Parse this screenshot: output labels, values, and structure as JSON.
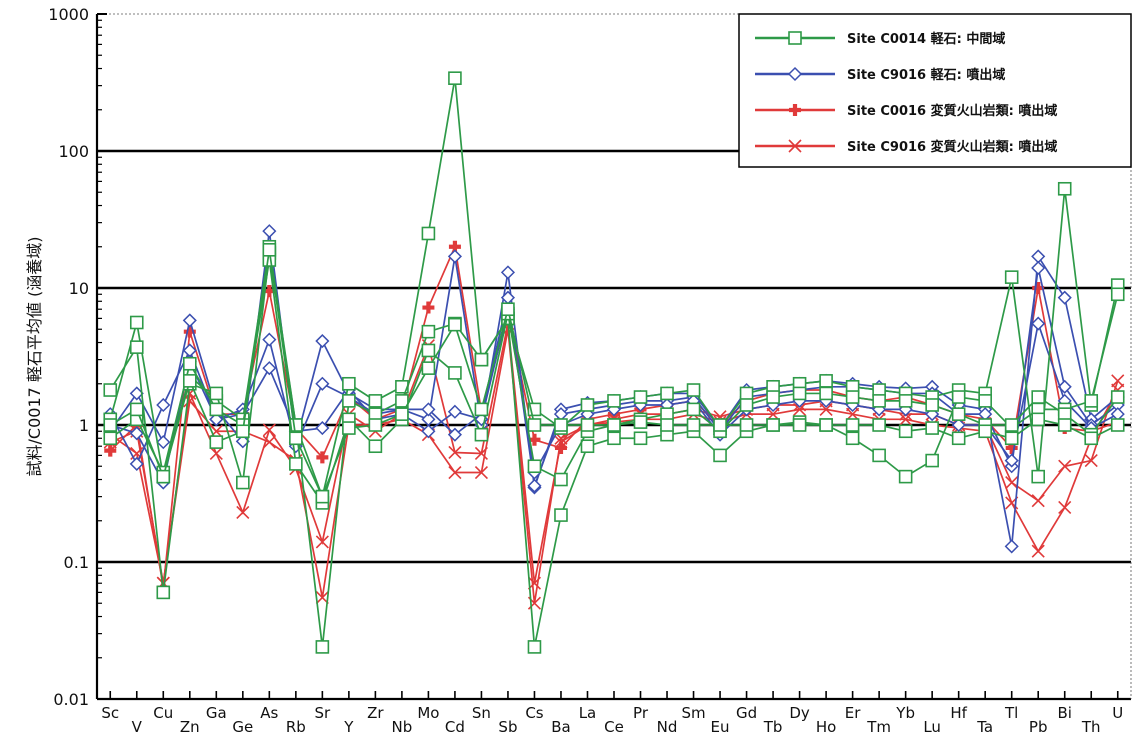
{
  "chart_data": {
    "type": "line",
    "ylabel": "試料/C0017 軽石平均値 (涵養域)",
    "xlabel": "",
    "yscale": "log",
    "ylim": [
      0.01,
      1000
    ],
    "yticks": [
      "0.01",
      "0.1",
      "1",
      "10",
      "100",
      "1000"
    ],
    "categories": [
      "Sc",
      "V",
      "Cu",
      "Zn",
      "Ga",
      "Ge",
      "As",
      "Rb",
      "Sr",
      "Y",
      "Zr",
      "Nb",
      "Mo",
      "Cd",
      "Sn",
      "Sb",
      "Cs",
      "Ba",
      "La",
      "Ce",
      "Pr",
      "Nd",
      "Sm",
      "Eu",
      "Gd",
      "Tb",
      "Dy",
      "Ho",
      "Er",
      "Tm",
      "Yb",
      "Lu",
      "Hf",
      "Ta",
      "Tl",
      "Pb",
      "Bi",
      "Th",
      "U"
    ],
    "grid_major_y": [
      0.1,
      1,
      10,
      100
    ],
    "legend_position": "top-right",
    "legend": [
      {
        "name": "Site C0014 軽石: 中間域",
        "color": "#2e9a48",
        "marker": "square"
      },
      {
        "name": "Site C9016 軽石: 噴出域",
        "color": "#3b4fb0",
        "marker": "diamond"
      },
      {
        "name": "Site C0016 変質火山岩類: 噴出域",
        "color": "#e03a3a",
        "marker": "plus"
      },
      {
        "name": "Site C9016 変質火山岩類: 噴出域",
        "color": "#e03a3a",
        "marker": "x"
      }
    ],
    "series": [
      {
        "color": "#2e9a48",
        "marker": "square",
        "values": [
          1.1,
          5.6,
          0.42,
          2.3,
          1.5,
          1.1,
          20,
          1.0,
          0.3,
          2.0,
          1.5,
          1.9,
          25,
          340,
          3.0,
          6.0,
          1.3,
          0.95,
          1.4,
          1.5,
          1.6,
          1.7,
          1.8,
          0.95,
          1.7,
          1.9,
          2.0,
          2.1,
          1.9,
          1.8,
          1.7,
          1.6,
          1.8,
          1.7,
          12,
          0.42,
          53,
          1.4,
          10.5
        ]
      },
      {
        "color": "#2e9a48",
        "marker": "square",
        "values": [
          1.8,
          3.7,
          0.06,
          2.0,
          1.7,
          0.38,
          18,
          1.0,
          0.024,
          1.5,
          1.2,
          1.5,
          4.8,
          5.5,
          3.0,
          6.0,
          0.024,
          0.22,
          0.7,
          0.8,
          0.8,
          0.85,
          0.9,
          0.6,
          0.9,
          1.0,
          1.05,
          1.0,
          0.8,
          0.6,
          0.42,
          0.55,
          1.6,
          1.5,
          0.95,
          1.3,
          1.3,
          1.5,
          9.0
        ]
      },
      {
        "color": "#2e9a48",
        "marker": "square",
        "values": [
          0.8,
          1.1,
          0.45,
          2.8,
          1.3,
          1.0,
          16,
          0.52,
          0.27,
          1.1,
          0.7,
          1.1,
          3.5,
          2.4,
          0.85,
          6.5,
          0.5,
          0.4,
          0.9,
          1.0,
          1.1,
          1.2,
          1.3,
          0.9,
          1.4,
          1.6,
          1.7,
          1.7,
          1.6,
          1.5,
          1.5,
          1.4,
          1.2,
          1.0,
          1.0,
          1.6,
          1.2,
          0.85,
          1.6
        ]
      },
      {
        "color": "#2e9a48",
        "marker": "square",
        "values": [
          1.0,
          1.3,
          0.42,
          2.1,
          0.75,
          0.9,
          19,
          0.8,
          0.3,
          0.95,
          1.0,
          1.2,
          2.6,
          5.4,
          1.3,
          7.0,
          1.0,
          1.0,
          1.0,
          1.0,
          1.05,
          1.0,
          1.0,
          1.0,
          1.0,
          1.0,
          1.0,
          1.0,
          1.0,
          1.0,
          0.9,
          0.95,
          0.8,
          0.9,
          0.8,
          1.1,
          1.0,
          0.8,
          1.0
        ]
      },
      {
        "color": "#3b4fb0",
        "marker": "diamond",
        "values": [
          0.9,
          1.7,
          0.75,
          5.8,
          1.3,
          0.76,
          26,
          0.75,
          4.1,
          1.7,
          1.3,
          1.3,
          1.1,
          17,
          1.0,
          13,
          0.35,
          1.3,
          1.45,
          1.5,
          1.6,
          1.7,
          1.7,
          0.95,
          1.8,
          1.9,
          2.0,
          2.1,
          2.0,
          1.9,
          1.85,
          1.9,
          1.4,
          1.3,
          0.13,
          17,
          8.5,
          1.1,
          1.6
        ]
      },
      {
        "color": "#3b4fb0",
        "marker": "diamond",
        "values": [
          1.2,
          0.52,
          1.4,
          3.5,
          1.1,
          1.3,
          4.2,
          0.7,
          2.0,
          1.6,
          1.2,
          1.3,
          1.3,
          0.85,
          1.2,
          8.5,
          0.36,
          1.2,
          1.3,
          1.4,
          1.5,
          1.5,
          1.6,
          0.9,
          1.6,
          1.7,
          1.8,
          1.9,
          1.9,
          1.8,
          1.7,
          1.7,
          1.2,
          1.2,
          0.5,
          14,
          1.9,
          1.0,
          1.4
        ]
      },
      {
        "color": "#3b4fb0",
        "marker": "diamond",
        "values": [
          1.0,
          0.87,
          0.38,
          2.9,
          1.1,
          1.2,
          2.6,
          0.9,
          0.95,
          1.8,
          1.1,
          1.2,
          0.9,
          1.25,
          1.1,
          7.0,
          0.45,
          1.0,
          1.2,
          1.3,
          1.4,
          1.4,
          1.5,
          0.85,
          1.3,
          1.4,
          1.5,
          1.5,
          1.4,
          1.3,
          1.3,
          1.2,
          1.0,
          1.0,
          0.55,
          5.5,
          1.5,
          0.95,
          1.2
        ]
      },
      {
        "color": "#e03a3a",
        "marker": "plus",
        "values": [
          0.65,
          1.0,
          0.065,
          4.8,
          1.2,
          1.2,
          9.5,
          0.95,
          0.58,
          1.6,
          1.1,
          1.3,
          7.2,
          20,
          1.25,
          6.5,
          0.78,
          0.68,
          1.1,
          1.2,
          1.3,
          1.4,
          1.5,
          1.0,
          1.5,
          1.7,
          1.8,
          1.8,
          1.6,
          1.5,
          1.6,
          1.4,
          1.2,
          1.1,
          0.68,
          10,
          0.95,
          0.9,
          1.05
        ]
      },
      {
        "color": "#e03a3a",
        "marker": "x",
        "values": [
          0.85,
          0.62,
          0.07,
          1.7,
          0.62,
          0.23,
          0.92,
          0.48,
          0.14,
          1.2,
          0.9,
          1.2,
          3.8,
          0.63,
          0.62,
          5.5,
          0.07,
          0.75,
          1.0,
          1.1,
          1.2,
          1.2,
          1.3,
          1.15,
          1.3,
          1.4,
          1.4,
          1.5,
          1.4,
          1.3,
          1.2,
          1.2,
          1.0,
          1.0,
          0.38,
          0.28,
          0.5,
          0.55,
          2.1
        ]
      },
      {
        "color": "#e03a3a",
        "marker": "x",
        "values": [
          0.75,
          0.9,
          0.07,
          1.5,
          0.9,
          0.9,
          0.75,
          0.55,
          0.055,
          1.0,
          1.0,
          1.1,
          0.85,
          0.45,
          0.45,
          5.0,
          0.05,
          0.8,
          1.0,
          1.05,
          1.1,
          1.1,
          1.2,
          1.05,
          1.2,
          1.2,
          1.3,
          1.3,
          1.2,
          1.1,
          1.1,
          1.0,
          0.95,
          0.9,
          0.27,
          0.12,
          0.25,
          0.8,
          1.8
        ]
      }
    ]
  }
}
